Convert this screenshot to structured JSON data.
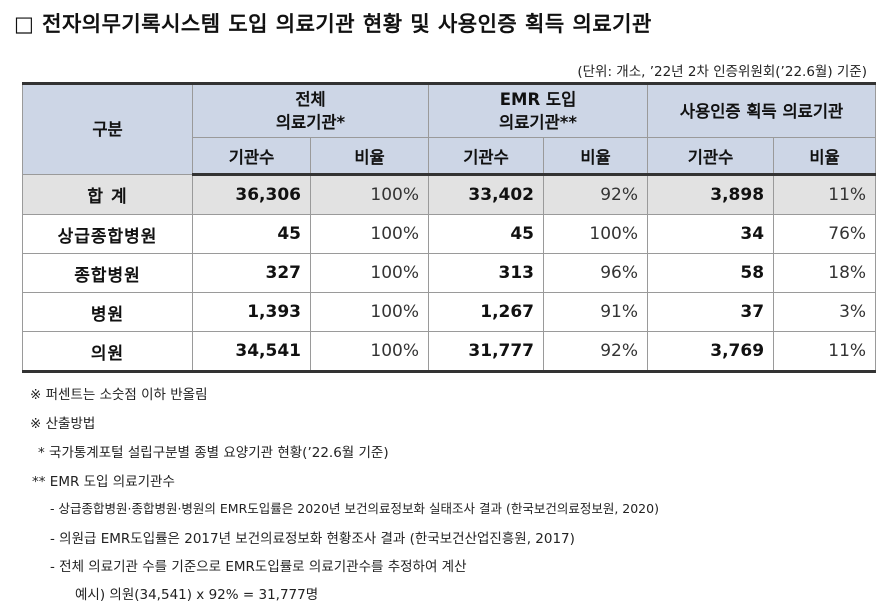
{
  "title": "□ 전자의무기록시스템 도입 의료기관 현황 및 사용인증 획득 의료기관",
  "unit_note": "(단위: 개소, ’22년 2차 인증위원회(’22.6월) 기준)",
  "table": {
    "category_header": "구분",
    "group_headers": [
      {
        "line1": "전체",
        "line2": "의료기관*"
      },
      {
        "line1": "EMR 도입",
        "line2": "의료기관**"
      },
      {
        "line1": "사용인증 획득 의료기관",
        "line2": ""
      }
    ],
    "sub_headers": [
      "기관수",
      "비율",
      "기관수",
      "비율",
      "기관수",
      "비율"
    ],
    "rows": [
      {
        "label": "합 계",
        "cells": [
          "36,306",
          "100%",
          "33,402",
          "92%",
          "3,898",
          "11%"
        ]
      },
      {
        "label": "상급종합병원",
        "cells": [
          "45",
          "100%",
          "45",
          "100%",
          "34",
          "76%"
        ]
      },
      {
        "label": "종합병원",
        "cells": [
          "327",
          "100%",
          "313",
          "96%",
          "58",
          "18%"
        ]
      },
      {
        "label": "병원",
        "cells": [
          "1,393",
          "100%",
          "1,267",
          "91%",
          "37",
          "3%"
        ]
      },
      {
        "label": "의원",
        "cells": [
          "34,541",
          "100%",
          "31,777",
          "92%",
          "3,769",
          "11%"
        ]
      }
    ]
  },
  "notes": [
    "※ 퍼센트는 소숫점 이하 반올림",
    "※ 산출방법",
    "* 국가통계포털 설립구분별 종별 요양기관 현황(’22.6월 기준)",
    "** EMR 도입 의료기관수",
    "- 상급종합병원·종합병원·병원의 EMR도입률은 2020년 보건의료정보화 실태조사 결과 (한국보건의료정보원, 2020)",
    "- 의원급 EMR도입률은 2017년 보건의료정보화 현황조사 결과 (한국보건산업진흥원, 2017)",
    "- 전체 의료기관 수를 기준으로 EMR도입률로 의료기관수를 추정하여 계산",
    "예시) 의원(34,541) x 92% = 31,777명"
  ]
}
